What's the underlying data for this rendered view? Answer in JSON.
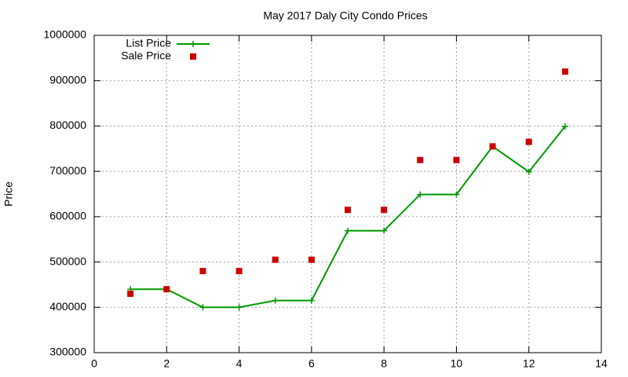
{
  "chart_data": {
    "type": "line",
    "title": "May 2017 Daly City Condo Prices",
    "y_label": "Price",
    "x": [
      1,
      2,
      3,
      4,
      5,
      6,
      7,
      8,
      9,
      10,
      11,
      12,
      13
    ],
    "series": [
      {
        "name": "List Price",
        "color": "#009900",
        "line": true,
        "marker": "plus",
        "values": [
          440000,
          440000,
          400000,
          400000,
          415000,
          415000,
          569000,
          569000,
          649000,
          649000,
          755000,
          699000,
          799000
        ]
      },
      {
        "name": "Sale Price",
        "color": "#cc0000",
        "line": false,
        "marker": "square",
        "values": [
          430000,
          440000,
          480000,
          480000,
          505000,
          505000,
          615000,
          615000,
          725000,
          725000,
          755000,
          765000,
          920000
        ]
      }
    ],
    "xlim": [
      0,
      14
    ],
    "xticks": [
      0,
      2,
      4,
      6,
      8,
      10,
      12,
      14
    ],
    "ylim": [
      300000,
      1000000
    ],
    "yticks": [
      300000,
      400000,
      500000,
      600000,
      700000,
      800000,
      900000,
      1000000
    ],
    "grid": true,
    "legend": "top-left"
  }
}
